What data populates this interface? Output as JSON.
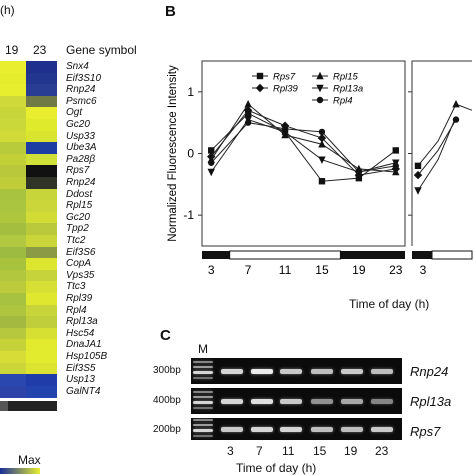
{
  "panelA": {
    "header_fragment": "(h)",
    "col_hours": [
      "19",
      "23"
    ],
    "gene_symbol_label": "Gene symbol",
    "genes": [
      "Snx4",
      "Eif3S10",
      "Rnp24",
      "Psmc6",
      "Ogt",
      "Gc20",
      "Usp33",
      "Ube3A",
      "Pa28β",
      "Rps7",
      "Rnp24",
      "Ddost",
      "Rpl15",
      "Gc20",
      "Tpp2",
      "Ttc2",
      "Eif3S6",
      "CopA",
      "Vps35",
      "Ttc3",
      "Rpl39",
      "Rpl4",
      "Rpl13a",
      "Hsc54",
      "DnaJA1",
      "Hsp105B",
      "Eif3S5",
      "Usp13",
      "GalNT4"
    ],
    "colors_col1": [
      "#e9ef2e",
      "#e4ec2c",
      "#e7ee2d",
      "#cfd93a",
      "#c7d53b",
      "#cbd83a",
      "#d0db38",
      "#b8cb3a",
      "#c2d038",
      "#b9c83a",
      "#c0cd3a",
      "#a7c33f",
      "#aac540",
      "#adc63e",
      "#a4bf40",
      "#b2c840",
      "#9dba41",
      "#a9c23e",
      "#b3c73e",
      "#bccb3c",
      "#a6c240",
      "#b0c53f",
      "#a3b93f",
      "#b6c83d",
      "#c5d23a",
      "#d7dd36",
      "#cdd638",
      "#2a47b0",
      "#2c44a8"
    ],
    "colors_col2": [
      "#1f2f8d",
      "#22358f",
      "#2a3d95",
      "#6f7a44",
      "#e8ee2e",
      "#e0ea2c",
      "#d9e42f",
      "#1d3da3",
      "#cfe036",
      "#111111",
      "#2f3427",
      "#c7d43a",
      "#cad63a",
      "#d1dc36",
      "#b9c93b",
      "#c9d539",
      "#8a9a45",
      "#dce62f",
      "#c6d33a",
      "#d5df34",
      "#dfe82f",
      "#c7d43a",
      "#c0ce3b",
      "#d6e032",
      "#e2ea2e",
      "#e3eb2e",
      "#dbe430",
      "#1f3ca8",
      "#2444ad"
    ],
    "legend_max": "Max"
  },
  "panelB": {
    "label": "B",
    "ylabel": "Normalized Fluorescence Intensity",
    "xlabel": "Time of day (h)"
  },
  "panelC": {
    "label": "C",
    "lane_marker": "M",
    "bands": [
      "300bp",
      "400bp",
      "200bp"
    ],
    "genes": [
      "Rnp24",
      "Rpl13a",
      "Rps7"
    ],
    "times": [
      "3",
      "7",
      "11",
      "15",
      "19",
      "23"
    ],
    "xlabel": "Time of day (h)"
  },
  "chart_data": {
    "type": "line",
    "x": [
      3,
      7,
      11,
      15,
      19,
      23
    ],
    "xticks": [
      "3",
      "7",
      "11",
      "15",
      "19",
      "23"
    ],
    "ylim": [
      -1.5,
      1.5
    ],
    "yticks": [
      "1",
      "0",
      "-1"
    ],
    "ylabel": "Normalized Fluorescence Intensity",
    "xlabel": "Time of day (h)",
    "legend_position": "top",
    "series": [
      {
        "name": "Rps7",
        "marker": "square",
        "values": [
          0.05,
          0.65,
          0.35,
          -0.45,
          -0.4,
          0.05
        ]
      },
      {
        "name": "Rpl39",
        "marker": "diamond",
        "values": [
          -0.05,
          0.7,
          0.45,
          0.25,
          -0.35,
          -0.25
        ]
      },
      {
        "name": "Rpl15",
        "marker": "triangle-up",
        "values": [
          -0.1,
          0.8,
          0.3,
          0.15,
          -0.25,
          -0.3
        ]
      },
      {
        "name": "Rpl13a",
        "marker": "triangle-down",
        "values": [
          -0.3,
          0.55,
          0.35,
          -0.1,
          -0.3,
          -0.15
        ]
      },
      {
        "name": "Rpl4",
        "marker": "circle",
        "values": [
          -0.15,
          0.5,
          0.4,
          0.35,
          -0.3,
          -0.2
        ]
      }
    ]
  }
}
